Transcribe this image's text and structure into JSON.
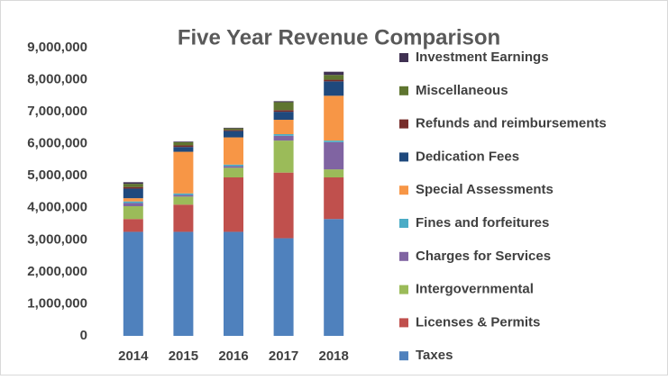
{
  "chart_data": {
    "type": "stacked_bar",
    "title": "Five Year Revenue Comparison",
    "categories": [
      "2014",
      "2015",
      "2016",
      "2017",
      "2018"
    ],
    "series": [
      {
        "name": "Taxes",
        "color": "#4f81bd",
        "values": [
          3250000,
          3250000,
          3250000,
          3050000,
          3650000
        ]
      },
      {
        "name": "Licenses & Permits",
        "color": "#c0504d",
        "values": [
          400000,
          850000,
          1700000,
          2050000,
          1300000
        ]
      },
      {
        "name": "Intergovernmental",
        "color": "#9bbb59",
        "values": [
          400000,
          250000,
          300000,
          1000000,
          250000
        ]
      },
      {
        "name": "Charges for Services",
        "color": "#8064a2",
        "values": [
          100000,
          50000,
          50000,
          150000,
          850000
        ]
      },
      {
        "name": "Fines and forfeitures",
        "color": "#4bacc6",
        "values": [
          50000,
          50000,
          50000,
          50000,
          50000
        ]
      },
      {
        "name": "Special Assessments",
        "color": "#f79646",
        "values": [
          100000,
          1300000,
          850000,
          450000,
          1400000
        ]
      },
      {
        "name": "Dedication Fees",
        "color": "#1f497d",
        "values": [
          300000,
          150000,
          200000,
          250000,
          450000
        ]
      },
      {
        "name": "Refunds and reimbursements",
        "color": "#772c2a",
        "values": [
          50000,
          50000,
          30000,
          50000,
          50000
        ]
      },
      {
        "name": "Miscellaneous",
        "color": "#5f7530",
        "values": [
          100000,
          100000,
          50000,
          250000,
          150000
        ]
      },
      {
        "name": "Investment Earnings",
        "color": "#403152",
        "values": [
          50000,
          20000,
          20000,
          30000,
          100000
        ]
      }
    ],
    "ylim": [
      0,
      9000000
    ],
    "yticks": [
      0,
      {
        "value": 1000000,
        "label": "1,000,000"
      },
      {
        "value": 2000000,
        "label": "2,000,000"
      },
      {
        "value": 3000000,
        "label": "3,000,000"
      },
      {
        "value": 4000000,
        "label": "4,000,000"
      },
      {
        "value": 5000000,
        "label": "5,000,000"
      },
      {
        "value": 6000000,
        "label": "6,000,000"
      },
      {
        "value": 7000000,
        "label": "7,000,000"
      },
      {
        "value": 8000000,
        "label": "8,000,000"
      },
      {
        "value": 9000000,
        "label": "9,000,000"
      }
    ],
    "legend": "right",
    "grid": false
  }
}
